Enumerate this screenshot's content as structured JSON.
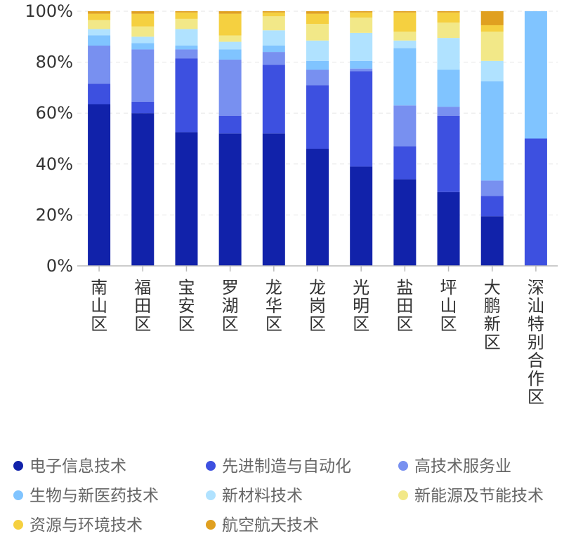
{
  "chart_data": {
    "type": "bar",
    "stacked": true,
    "percent": true,
    "categories": [
      "南山区",
      "福田区",
      "宝安区",
      "罗湖区",
      "龙华区",
      "龙岗区",
      "光明区",
      "盐田区",
      "坪山区",
      "大鹏新区",
      "深汕特别合作区"
    ],
    "y_ticks": [
      "0%",
      "20%",
      "40%",
      "60%",
      "80%",
      "100%"
    ],
    "ylim": [
      0,
      100
    ],
    "grid": true,
    "legend_position": "bottom",
    "series": [
      {
        "name": "电子信息技术",
        "color": "#1122AA",
        "values": [
          63.5,
          60,
          52.5,
          52,
          52,
          46,
          39,
          34,
          29,
          19.5,
          0
        ]
      },
      {
        "name": "先进制造与自动化",
        "color": "#3D50E0",
        "values": [
          8,
          4.5,
          29,
          7,
          27,
          25,
          37.5,
          13,
          30,
          8,
          50
        ]
      },
      {
        "name": "高技术服务业",
        "color": "#7890F0",
        "values": [
          15,
          20.5,
          3.5,
          22,
          5,
          6,
          1,
          16,
          3.5,
          6,
          0
        ]
      },
      {
        "name": "生物与新医药技术",
        "color": "#80C4FF",
        "values": [
          4,
          2.5,
          1.5,
          4,
          2.5,
          3.5,
          3,
          22.5,
          14.5,
          39,
          50
        ]
      },
      {
        "name": "新材料技术",
        "color": "#B0E2FF",
        "values": [
          2.5,
          2.5,
          6.5,
          3,
          6,
          8,
          11,
          3,
          12.5,
          8,
          0
        ]
      },
      {
        "name": "新能源及节能技术",
        "color": "#F2E888",
        "values": [
          3.5,
          4,
          4,
          2.5,
          5.5,
          6.5,
          6,
          3.5,
          6,
          11.5,
          0
        ]
      },
      {
        "name": "资源与环境技术",
        "color": "#F5D040",
        "values": [
          2.5,
          5,
          2.5,
          8.5,
          1.5,
          4,
          2,
          7.5,
          4,
          2.5,
          0
        ]
      },
      {
        "name": "航空航天技术",
        "color": "#E0A020",
        "values": [
          1,
          1,
          0.5,
          1,
          0.5,
          1,
          0.5,
          0.5,
          0.5,
          5.5,
          0
        ]
      }
    ]
  }
}
